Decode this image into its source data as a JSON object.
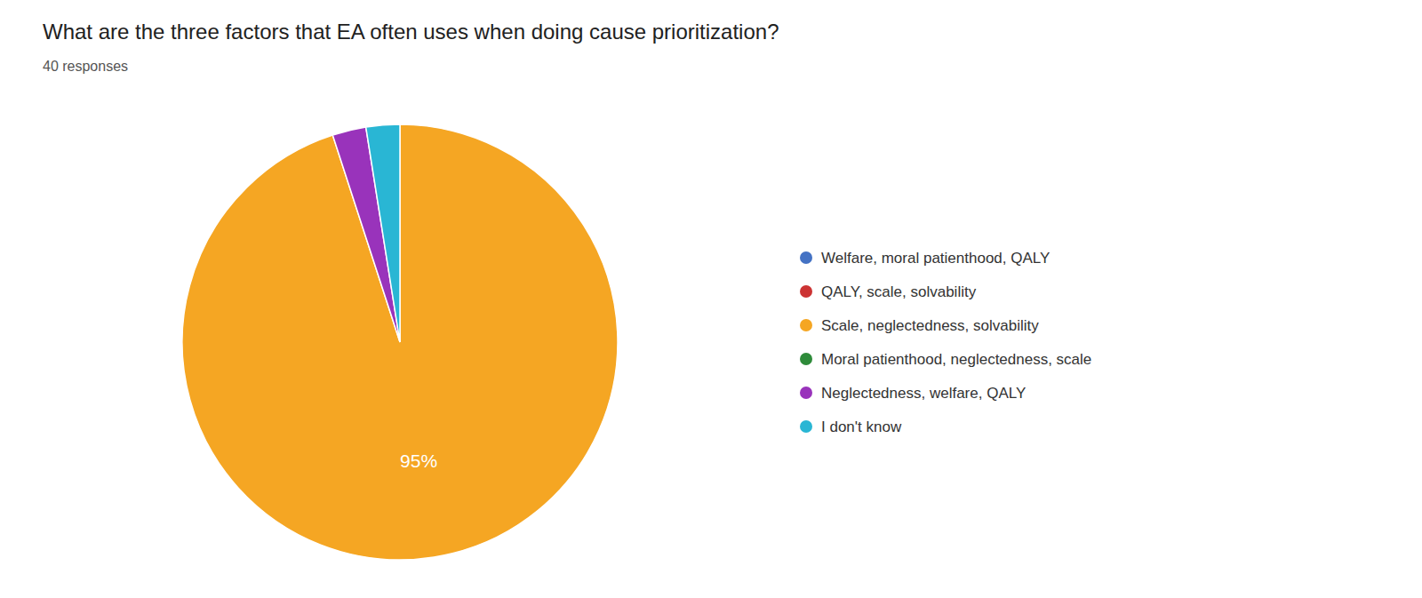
{
  "chart_data": {
    "type": "pie",
    "title": "What are the three factors that EA often uses when doing cause prioritization?",
    "subtitle": "40 responses",
    "categories": [
      "Welfare, moral patienthood, QALY",
      "QALY, scale, solvability",
      "Scale, neglectedness, solvability",
      "Moral patienthood, neglectedness, scale",
      "Neglectedness, welfare, QALY",
      "I don't know"
    ],
    "values": [
      0,
      0,
      95,
      0,
      2.5,
      2.5
    ],
    "value_labels": [
      null,
      null,
      "95%",
      null,
      null,
      null
    ],
    "colors": [
      "#4472C4",
      "#CC3333",
      "#F5A623",
      "#2E8B3A",
      "#9933BB",
      "#29B6D4"
    ],
    "data_labels": true,
    "legend": "right"
  }
}
